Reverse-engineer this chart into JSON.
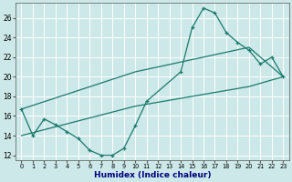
{
  "xlabel": "Humidex (Indice chaleur)",
  "bg_color": "#cce8e8",
  "grid_color": "#ffffff",
  "line_color": "#1a7a6e",
  "xlim": [
    -0.5,
    23.5
  ],
  "ylim": [
    11.5,
    27.5
  ],
  "xticks": [
    0,
    1,
    2,
    3,
    4,
    5,
    6,
    7,
    8,
    9,
    10,
    11,
    12,
    13,
    14,
    15,
    16,
    17,
    18,
    19,
    20,
    21,
    22,
    23
  ],
  "yticks": [
    12,
    14,
    16,
    18,
    20,
    22,
    24,
    26
  ],
  "series1_x": [
    0,
    1,
    2,
    3,
    4,
    5,
    6,
    7,
    8,
    9,
    10,
    11,
    14,
    15,
    16,
    17,
    18,
    19,
    20,
    21,
    22,
    23
  ],
  "series1_y": [
    16.7,
    14.0,
    15.7,
    15.1,
    14.4,
    13.7,
    12.5,
    12.0,
    12.0,
    12.7,
    15.0,
    17.5,
    20.5,
    25.0,
    27.0,
    26.5,
    24.5,
    23.5,
    22.7,
    21.3,
    22.0,
    20.0
  ],
  "series2_x": [
    0,
    10,
    20,
    23
  ],
  "series2_y": [
    16.7,
    20.5,
    23.0,
    20.0
  ],
  "series3_x": [
    0,
    10,
    20,
    23
  ],
  "series3_y": [
    14.0,
    17.0,
    19.0,
    20.0
  ]
}
